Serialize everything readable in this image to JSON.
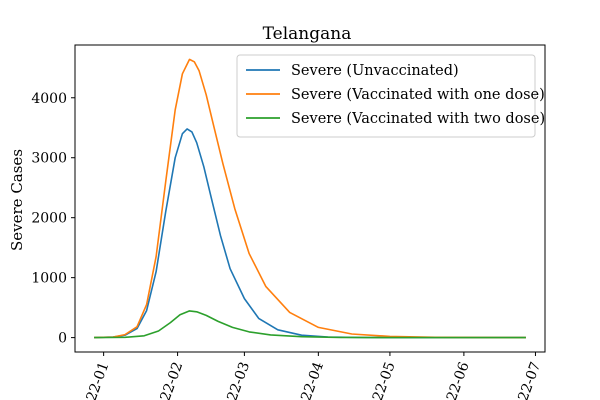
{
  "chart_data": {
    "type": "line",
    "title": "Telangana",
    "xlabel": "",
    "ylabel": "Severe Cases",
    "x_start": "2021-12-28",
    "x_end": "2022-06-27",
    "xlim": [
      "2021-12-20",
      "2022-07-05"
    ],
    "ylim": [
      -240,
      4880
    ],
    "x_ticks": [
      {
        "date": "2022-01-01",
        "label": "2022-01"
      },
      {
        "date": "2022-02-01",
        "label": "2022-02"
      },
      {
        "date": "2022-03-01",
        "label": "2022-03"
      },
      {
        "date": "2022-04-01",
        "label": "2022-04"
      },
      {
        "date": "2022-05-01",
        "label": "2022-05"
      },
      {
        "date": "2022-06-01",
        "label": "2022-06"
      },
      {
        "date": "2022-07-01",
        "label": "2022-07"
      }
    ],
    "y_ticks": [
      {
        "value": 0,
        "label": "0"
      },
      {
        "value": 1000,
        "label": "1000"
      },
      {
        "value": 2000,
        "label": "2000"
      },
      {
        "value": 3000,
        "label": "3000"
      },
      {
        "value": 4000,
        "label": "4000"
      }
    ],
    "grid": false,
    "legend_position": "top-right",
    "series": [
      {
        "name": "Severe (Unvaccinated)",
        "color": "#1f77b4",
        "points": [
          [
            "2021-12-28",
            0
          ],
          [
            "2022-01-05",
            10
          ],
          [
            "2022-01-10",
            40
          ],
          [
            "2022-01-15",
            150
          ],
          [
            "2022-01-19",
            450
          ],
          [
            "2022-01-23",
            1100
          ],
          [
            "2022-01-27",
            2100
          ],
          [
            "2022-01-31",
            3000
          ],
          [
            "2022-02-03",
            3400
          ],
          [
            "2022-02-05",
            3480
          ],
          [
            "2022-02-07",
            3430
          ],
          [
            "2022-02-09",
            3250
          ],
          [
            "2022-02-12",
            2850
          ],
          [
            "2022-02-15",
            2350
          ],
          [
            "2022-02-19",
            1700
          ],
          [
            "2022-02-23",
            1150
          ],
          [
            "2022-03-01",
            650
          ],
          [
            "2022-03-07",
            320
          ],
          [
            "2022-03-15",
            130
          ],
          [
            "2022-03-25",
            40
          ],
          [
            "2022-04-05",
            10
          ],
          [
            "2022-04-20",
            2
          ],
          [
            "2022-05-10",
            0
          ],
          [
            "2022-06-27",
            0
          ]
        ]
      },
      {
        "name": "Severe (Vaccinated with one dose)",
        "color": "#ff7f0e",
        "points": [
          [
            "2021-12-28",
            0
          ],
          [
            "2022-01-05",
            10
          ],
          [
            "2022-01-10",
            50
          ],
          [
            "2022-01-15",
            180
          ],
          [
            "2022-01-19",
            550
          ],
          [
            "2022-01-23",
            1350
          ],
          [
            "2022-01-27",
            2600
          ],
          [
            "2022-01-31",
            3800
          ],
          [
            "2022-02-03",
            4400
          ],
          [
            "2022-02-06",
            4640
          ],
          [
            "2022-02-08",
            4600
          ],
          [
            "2022-02-10",
            4450
          ],
          [
            "2022-02-13",
            4050
          ],
          [
            "2022-02-16",
            3550
          ],
          [
            "2022-02-20",
            2900
          ],
          [
            "2022-02-25",
            2150
          ],
          [
            "2022-03-03",
            1400
          ],
          [
            "2022-03-10",
            850
          ],
          [
            "2022-03-20",
            420
          ],
          [
            "2022-04-01",
            170
          ],
          [
            "2022-04-15",
            60
          ],
          [
            "2022-05-01",
            20
          ],
          [
            "2022-05-20",
            5
          ],
          [
            "2022-06-27",
            0
          ]
        ]
      },
      {
        "name": "Severe (Vaccinated with two dose)",
        "color": "#2ca02c",
        "points": [
          [
            "2021-12-28",
            0
          ],
          [
            "2022-01-10",
            5
          ],
          [
            "2022-01-18",
            30
          ],
          [
            "2022-01-24",
            110
          ],
          [
            "2022-01-29",
            250
          ],
          [
            "2022-02-02",
            380
          ],
          [
            "2022-02-06",
            445
          ],
          [
            "2022-02-09",
            430
          ],
          [
            "2022-02-13",
            370
          ],
          [
            "2022-02-18",
            270
          ],
          [
            "2022-02-24",
            170
          ],
          [
            "2022-03-03",
            95
          ],
          [
            "2022-03-12",
            45
          ],
          [
            "2022-03-25",
            15
          ],
          [
            "2022-04-10",
            3
          ],
          [
            "2022-05-01",
            0
          ],
          [
            "2022-06-27",
            0
          ]
        ]
      }
    ]
  }
}
